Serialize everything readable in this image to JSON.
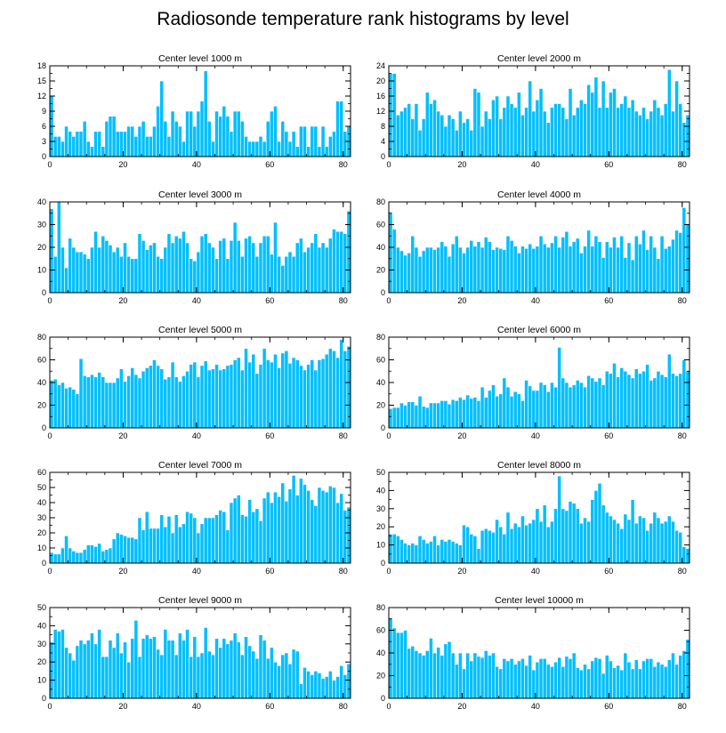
{
  "title": "Radiosonde temperature rank histograms by level",
  "style": {
    "bar_color": "#00BFFF",
    "bar_edge": "#ffffff",
    "axis_color": "#000000"
  },
  "chart_data": [
    {
      "type": "bar",
      "title": "Center level 1000 m",
      "xlabel": "",
      "ylabel": "",
      "xlim": [
        0,
        82
      ],
      "ylim": [
        0,
        18
      ],
      "xticks": [
        0,
        20,
        40,
        60,
        80
      ],
      "yticks": [
        0,
        3,
        6,
        9,
        12,
        15,
        18
      ],
      "values": [
        12,
        4,
        4,
        3,
        6,
        5,
        4,
        5,
        5,
        7,
        3,
        2,
        5,
        5,
        2,
        7,
        8,
        8,
        5,
        5,
        5,
        6,
        6,
        4,
        6,
        7,
        4,
        4,
        6,
        10,
        15,
        7,
        4,
        9,
        7,
        6,
        3,
        9,
        9,
        6,
        9,
        11,
        17,
        7,
        3,
        9,
        8,
        10,
        8,
        5,
        9,
        9,
        7,
        4,
        3,
        3,
        3,
        4,
        3,
        7,
        9,
        10,
        3,
        7,
        5,
        3,
        5,
        2,
        6,
        6,
        2,
        6,
        6,
        2,
        6,
        2,
        4,
        5,
        11,
        11,
        5,
        6
      ]
    },
    {
      "type": "bar",
      "title": "Center level 2000 m",
      "xlabel": "",
      "ylabel": "",
      "xlim": [
        0,
        82
      ],
      "ylim": [
        0,
        24
      ],
      "xticks": [
        0,
        20,
        40,
        60,
        80
      ],
      "yticks": [
        0,
        4,
        8,
        12,
        16,
        20,
        24
      ],
      "values": [
        22,
        22,
        11,
        12,
        13,
        14,
        10,
        14,
        7,
        10,
        17,
        14,
        15,
        12,
        11,
        8,
        11,
        10,
        7,
        12,
        9,
        10,
        7,
        18,
        17,
        8,
        12,
        10,
        15,
        16,
        10,
        13,
        16,
        14,
        13,
        17,
        11,
        13,
        20,
        12,
        15,
        18,
        12,
        9,
        13,
        14,
        14,
        13,
        10,
        18,
        11,
        13,
        15,
        14,
        19,
        17,
        21,
        13,
        20,
        13,
        17,
        18,
        13,
        14,
        16,
        13,
        15,
        12,
        11,
        13,
        10,
        12,
        15,
        13,
        11,
        14,
        23,
        12,
        20,
        14,
        9,
        11
      ]
    },
    {
      "type": "bar",
      "title": "Center level 3000 m",
      "xlabel": "",
      "ylabel": "",
      "xlim": [
        0,
        82
      ],
      "ylim": [
        0,
        40
      ],
      "xticks": [
        0,
        20,
        40,
        60,
        80
      ],
      "yticks": [
        0,
        10,
        20,
        30,
        40
      ],
      "values": [
        37,
        16,
        40,
        20,
        11,
        24,
        20,
        18,
        18,
        17,
        15,
        20,
        27,
        20,
        25,
        23,
        21,
        18,
        20,
        16,
        22,
        16,
        15,
        15,
        26,
        23,
        19,
        21,
        22,
        16,
        15,
        20,
        26,
        22,
        25,
        24,
        27,
        22,
        15,
        14,
        18,
        25,
        26,
        22,
        20,
        15,
        23,
        24,
        15,
        23,
        31,
        23,
        16,
        24,
        25,
        22,
        16,
        22,
        25,
        25,
        17,
        31,
        16,
        12,
        16,
        18,
        16,
        22,
        24,
        18,
        20,
        22,
        26,
        20,
        22,
        20,
        24,
        28,
        27,
        27,
        26,
        36
      ]
    },
    {
      "type": "bar",
      "title": "Center level 4000 m",
      "xlabel": "",
      "ylabel": "",
      "xlim": [
        0,
        82
      ],
      "ylim": [
        0,
        80
      ],
      "xticks": [
        0,
        20,
        40,
        60,
        80
      ],
      "yticks": [
        0,
        20,
        40,
        60,
        80
      ],
      "values": [
        71,
        56,
        40,
        37,
        33,
        35,
        50,
        40,
        32,
        37,
        40,
        40,
        38,
        40,
        45,
        41,
        32,
        43,
        50,
        40,
        35,
        40,
        46,
        41,
        45,
        40,
        49,
        45,
        38,
        40,
        39,
        38,
        50,
        46,
        41,
        35,
        41,
        39,
        43,
        39,
        41,
        50,
        43,
        40,
        44,
        50,
        40,
        49,
        54,
        41,
        45,
        48,
        35,
        41,
        55,
        41,
        50,
        45,
        31,
        45,
        40,
        49,
        40,
        50,
        31,
        44,
        29,
        50,
        43,
        55,
        38,
        50,
        40,
        30,
        50,
        39,
        41,
        47,
        55,
        53,
        75,
        60
      ]
    },
    {
      "type": "bar",
      "title": "Center level 5000 m",
      "xlabel": "",
      "ylabel": "",
      "xlim": [
        0,
        82
      ],
      "ylim": [
        0,
        80
      ],
      "xticks": [
        0,
        20,
        40,
        60,
        80
      ],
      "yticks": [
        0,
        20,
        40,
        60,
        80
      ],
      "values": [
        42,
        43,
        38,
        40,
        35,
        36,
        34,
        30,
        61,
        46,
        45,
        47,
        45,
        49,
        45,
        40,
        40,
        40,
        44,
        52,
        41,
        46,
        53,
        47,
        44,
        50,
        53,
        55,
        60,
        55,
        52,
        43,
        45,
        58,
        45,
        41,
        46,
        50,
        56,
        58,
        45,
        55,
        59,
        51,
        52,
        56,
        51,
        52,
        55,
        56,
        60,
        62,
        51,
        70,
        58,
        65,
        48,
        56,
        70,
        60,
        58,
        65,
        53,
        66,
        68,
        57,
        62,
        60,
        55,
        51,
        56,
        60,
        51,
        60,
        61,
        65,
        70,
        68,
        62,
        78,
        68,
        72
      ]
    },
    {
      "type": "bar",
      "title": "Center level 6000 m",
      "xlabel": "",
      "ylabel": "",
      "xlim": [
        0,
        82
      ],
      "ylim": [
        0,
        80
      ],
      "xticks": [
        0,
        20,
        40,
        60,
        80
      ],
      "yticks": [
        0,
        20,
        40,
        60,
        80
      ],
      "values": [
        17,
        18,
        18,
        22,
        20,
        23,
        23,
        20,
        28,
        19,
        18,
        22,
        22,
        22,
        24,
        24,
        21,
        25,
        24,
        27,
        25,
        29,
        26,
        27,
        24,
        36,
        27,
        33,
        38,
        28,
        30,
        44,
        36,
        28,
        32,
        30,
        24,
        42,
        37,
        33,
        33,
        40,
        38,
        32,
        40,
        36,
        71,
        44,
        40,
        36,
        38,
        42,
        40,
        36,
        46,
        44,
        41,
        44,
        38,
        50,
        48,
        57,
        45,
        53,
        50,
        47,
        44,
        52,
        48,
        50,
        56,
        42,
        44,
        50,
        47,
        45,
        65,
        48,
        46,
        48,
        60,
        50
      ]
    },
    {
      "type": "bar",
      "title": "Center level 7000 m",
      "xlabel": "",
      "ylabel": "",
      "xlim": [
        0,
        82
      ],
      "ylim": [
        0,
        60
      ],
      "xticks": [
        0,
        20,
        40,
        60,
        80
      ],
      "yticks": [
        0,
        10,
        20,
        30,
        40,
        50,
        60
      ],
      "values": [
        7,
        6,
        6,
        10,
        18,
        10,
        8,
        7,
        7,
        9,
        12,
        12,
        11,
        13,
        8,
        9,
        10,
        16,
        20,
        19,
        18,
        17,
        17,
        16,
        30,
        22,
        34,
        23,
        23,
        23,
        32,
        24,
        31,
        20,
        32,
        24,
        26,
        34,
        33,
        30,
        20,
        26,
        30,
        30,
        30,
        32,
        35,
        34,
        22,
        40,
        43,
        45,
        32,
        31,
        42,
        34,
        36,
        28,
        43,
        47,
        40,
        47,
        44,
        53,
        41,
        49,
        58,
        45,
        56,
        52,
        48,
        42,
        38,
        50,
        48,
        47,
        51,
        50,
        40,
        46,
        35,
        37
      ]
    },
    {
      "type": "bar",
      "title": "Center level 8000 m",
      "xlabel": "",
      "ylabel": "",
      "xlim": [
        0,
        82
      ],
      "ylim": [
        0,
        50
      ],
      "xticks": [
        0,
        20,
        40,
        60,
        80
      ],
      "yticks": [
        0,
        10,
        20,
        30,
        40,
        50
      ],
      "values": [
        16,
        16,
        15,
        13,
        11,
        10,
        11,
        10,
        15,
        13,
        11,
        12,
        15,
        10,
        13,
        12,
        13,
        12,
        11,
        10,
        21,
        20,
        16,
        15,
        8,
        18,
        19,
        18,
        17,
        24,
        20,
        16,
        28,
        19,
        22,
        20,
        26,
        21,
        22,
        24,
        30,
        23,
        32,
        20,
        23,
        30,
        48,
        30,
        29,
        34,
        33,
        30,
        22,
        25,
        23,
        35,
        40,
        44,
        32,
        28,
        26,
        24,
        22,
        19,
        27,
        24,
        35,
        22,
        26,
        25,
        18,
        22,
        28,
        25,
        22,
        23,
        26,
        23,
        18,
        17,
        9,
        8
      ]
    },
    {
      "type": "bar",
      "title": "Center level 9000 m",
      "xlabel": "",
      "ylabel": "",
      "xlim": [
        0,
        82
      ],
      "ylim": [
        0,
        50
      ],
      "xticks": [
        0,
        20,
        40,
        60,
        80
      ],
      "yticks": [
        0,
        10,
        20,
        30,
        40,
        50
      ],
      "values": [
        31,
        38,
        37,
        38,
        28,
        25,
        21,
        29,
        32,
        30,
        32,
        36,
        30,
        38,
        23,
        23,
        32,
        28,
        36,
        25,
        31,
        20,
        33,
        43,
        23,
        33,
        35,
        33,
        34,
        27,
        24,
        38,
        32,
        32,
        24,
        36,
        32,
        38,
        23,
        34,
        23,
        25,
        39,
        26,
        24,
        33,
        28,
        33,
        30,
        32,
        36,
        31,
        24,
        34,
        29,
        26,
        22,
        35,
        32,
        22,
        28,
        20,
        18,
        24,
        25,
        19,
        27,
        26,
        8,
        17,
        15,
        13,
        15,
        14,
        11,
        12,
        15,
        10,
        12,
        18,
        13,
        19
      ]
    },
    {
      "type": "bar",
      "title": "Center level 10000 m",
      "xlabel": "",
      "ylabel": "",
      "xlim": [
        0,
        82
      ],
      "ylim": [
        0,
        80
      ],
      "xticks": [
        0,
        20,
        40,
        60,
        80
      ],
      "yticks": [
        0,
        20,
        40,
        60,
        80
      ],
      "values": [
        71,
        62,
        58,
        58,
        60,
        44,
        46,
        42,
        40,
        38,
        42,
        53,
        40,
        45,
        38,
        48,
        50,
        40,
        30,
        40,
        26,
        40,
        33,
        40,
        37,
        36,
        42,
        38,
        40,
        28,
        26,
        35,
        33,
        35,
        30,
        33,
        35,
        29,
        38,
        25,
        32,
        35,
        35,
        30,
        28,
        32,
        36,
        28,
        37,
        35,
        40,
        27,
        25,
        30,
        26,
        33,
        36,
        35,
        22,
        38,
        33,
        27,
        29,
        25,
        40,
        32,
        26,
        34,
        26,
        33,
        35,
        35,
        28,
        32,
        30,
        28,
        34,
        40,
        30,
        38,
        42,
        52
      ]
    }
  ]
}
